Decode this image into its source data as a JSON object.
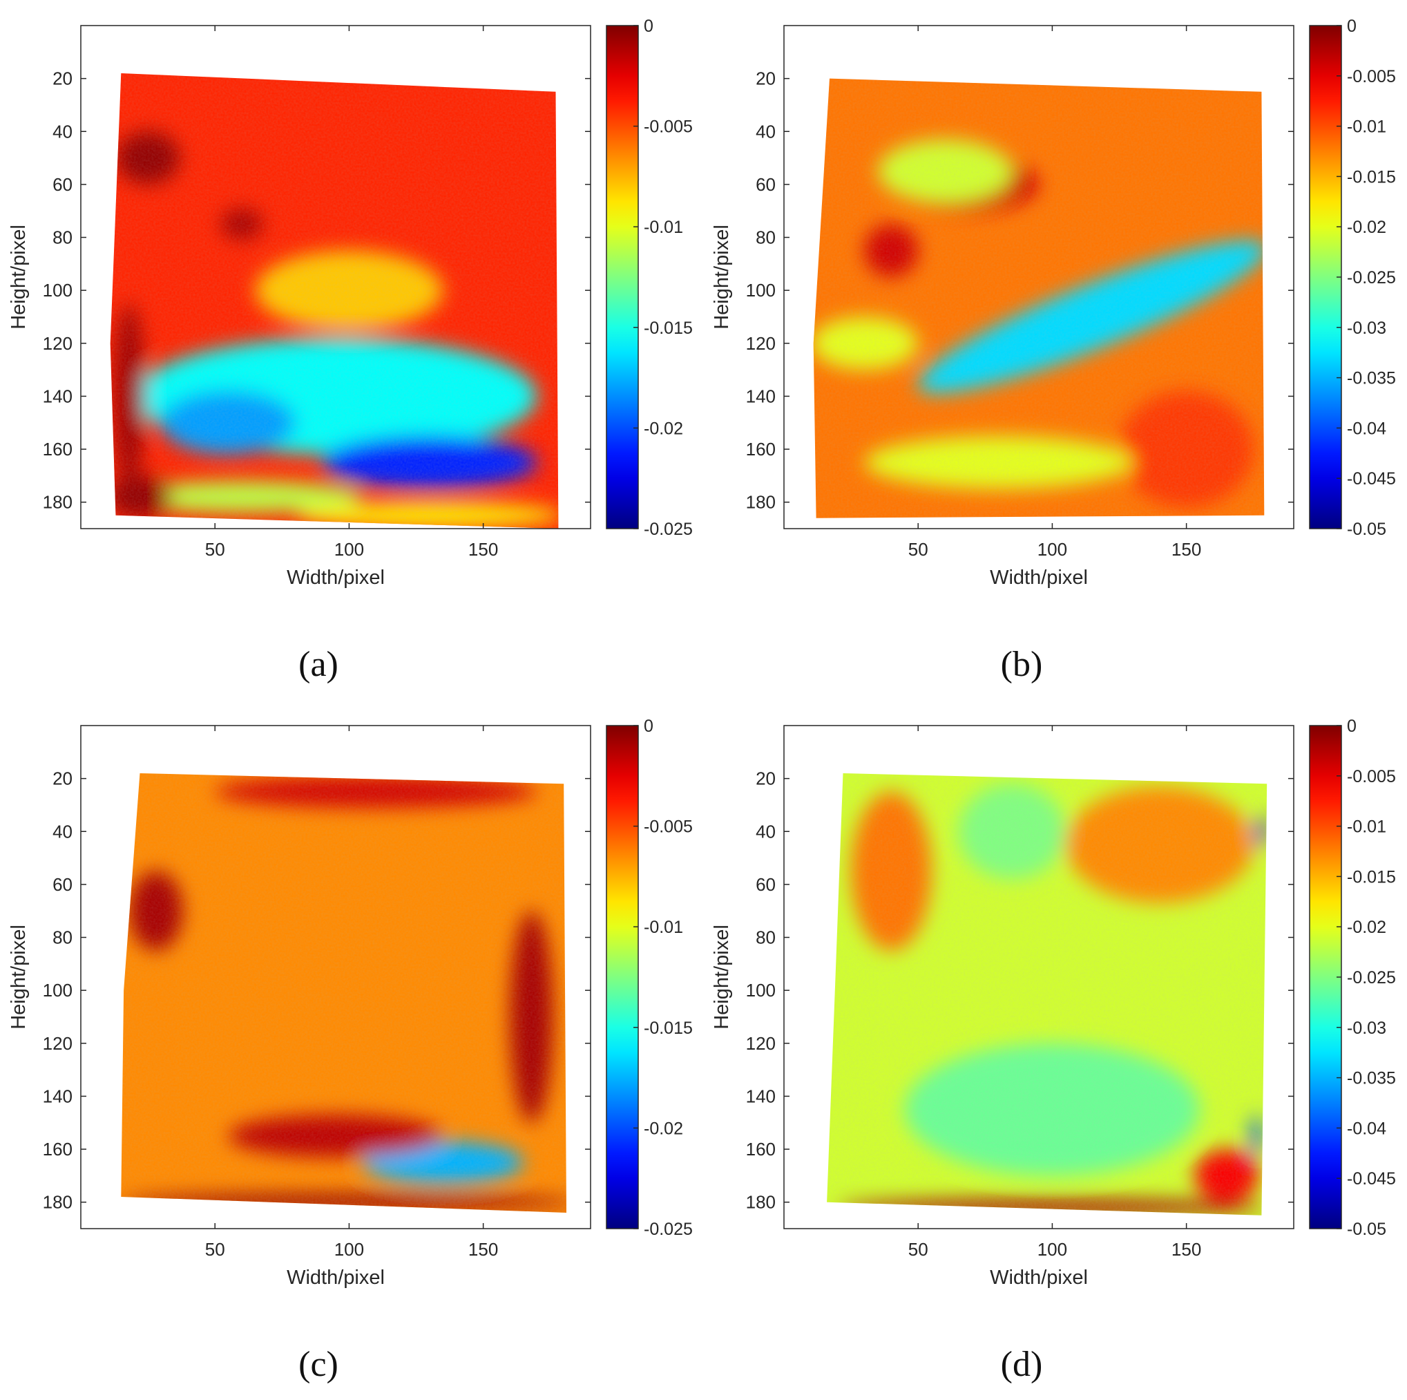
{
  "chart_data": [
    {
      "type": "heatmap",
      "panel_label": "(a)",
      "xlabel": "Width/pixel",
      "ylabel": "Height/pixel",
      "xlim": [
        0,
        190
      ],
      "ylim": [
        190,
        0
      ],
      "xticks": [
        50,
        100,
        150
      ],
      "yticks": [
        20,
        40,
        60,
        80,
        100,
        120,
        140,
        160,
        180
      ],
      "colorbar": {
        "colormap": "jet",
        "min": -0.025,
        "max": 0,
        "ticks": [
          "0",
          "-0.005",
          "-0.01",
          "-0.015",
          "-0.02",
          "-0.025"
        ]
      },
      "field": {
        "base": -0.004,
        "outline": [
          [
            15,
            18
          ],
          [
            177,
            25
          ],
          [
            178,
            190
          ],
          [
            13,
            185
          ],
          [
            11,
            120
          ]
        ],
        "features": [
          {
            "x": 95,
            "y": 140,
            "rx": 75,
            "ry": 22,
            "v": -0.0155
          },
          {
            "x": 130,
            "y": 165,
            "rx": 40,
            "ry": 10,
            "v": -0.021
          },
          {
            "x": 55,
            "y": 150,
            "rx": 25,
            "ry": 12,
            "v": -0.018
          },
          {
            "x": 60,
            "y": 178,
            "rx": 45,
            "ry": 6,
            "v": -0.011
          },
          {
            "x": 130,
            "y": 185,
            "rx": 50,
            "ry": 5,
            "v": -0.009
          },
          {
            "x": 25,
            "y": 50,
            "rx": 12,
            "ry": 10,
            "v": -0.0005
          },
          {
            "x": 18,
            "y": 140,
            "rx": 6,
            "ry": 35,
            "v": -0.0008
          },
          {
            "x": 22,
            "y": 178,
            "rx": 12,
            "ry": 8,
            "v": -0.0005
          },
          {
            "x": 60,
            "y": 75,
            "rx": 8,
            "ry": 6,
            "v": -0.001
          },
          {
            "x": 100,
            "y": 100,
            "rx": 35,
            "ry": 15,
            "v": -0.008
          }
        ]
      }
    },
    {
      "type": "heatmap",
      "panel_label": "(b)",
      "xlabel": "Width/pixel",
      "ylabel": "Height/pixel",
      "xlim": [
        0,
        190
      ],
      "ylim": [
        190,
        0
      ],
      "xticks": [
        50,
        100,
        150
      ],
      "yticks": [
        20,
        40,
        60,
        80,
        100,
        120,
        140,
        160,
        180
      ],
      "colorbar": {
        "colormap": "jet",
        "min": -0.05,
        "max": 0,
        "ticks": [
          "0",
          "-0.005",
          "-0.01",
          "-0.015",
          "-0.02",
          "-0.025",
          "-0.03",
          "-0.035",
          "-0.04",
          "-0.045",
          "-0.05"
        ]
      },
      "field": {
        "base": -0.012,
        "outline": [
          [
            17,
            20
          ],
          [
            178,
            25
          ],
          [
            179,
            185
          ],
          [
            12,
            186
          ],
          [
            11,
            120
          ]
        ],
        "features": [
          {
            "x": 115,
            "y": 110,
            "rx": 70,
            "ry": 12,
            "v": -0.033,
            "angle": -22
          },
          {
            "x": 70,
            "y": 60,
            "rx": 25,
            "ry": 10,
            "v": -0.004
          },
          {
            "x": 40,
            "y": 85,
            "rx": 10,
            "ry": 10,
            "v": -0.004
          },
          {
            "x": 150,
            "y": 160,
            "rx": 25,
            "ry": 22,
            "v": -0.009
          },
          {
            "x": 60,
            "y": 55,
            "rx": 25,
            "ry": 12,
            "v": -0.021
          },
          {
            "x": 80,
            "y": 165,
            "rx": 50,
            "ry": 10,
            "v": -0.02
          },
          {
            "x": 30,
            "y": 120,
            "rx": 20,
            "ry": 10,
            "v": -0.02
          }
        ]
      }
    },
    {
      "type": "heatmap",
      "panel_label": "(c)",
      "xlabel": "Width/pixel",
      "ylabel": "Height/pixel",
      "xlim": [
        0,
        190
      ],
      "ylim": [
        190,
        0
      ],
      "xticks": [
        50,
        100,
        150
      ],
      "yticks": [
        20,
        40,
        60,
        80,
        100,
        120,
        140,
        160,
        180
      ],
      "colorbar": {
        "colormap": "jet",
        "min": -0.025,
        "max": 0,
        "ticks": [
          "0",
          "-0.005",
          "-0.01",
          "-0.015",
          "-0.02",
          "-0.025"
        ]
      },
      "field": {
        "base": -0.0065,
        "outline": [
          [
            22,
            18
          ],
          [
            180,
            22
          ],
          [
            181,
            184
          ],
          [
            15,
            178
          ],
          [
            16,
            100
          ]
        ],
        "features": [
          {
            "x": 135,
            "y": 165,
            "rx": 30,
            "ry": 8,
            "v": -0.0175
          },
          {
            "x": 100,
            "y": 180,
            "rx": 85,
            "ry": 3,
            "v": -0.0005
          },
          {
            "x": 28,
            "y": 70,
            "rx": 10,
            "ry": 15,
            "v": -0.001
          },
          {
            "x": 168,
            "y": 110,
            "rx": 8,
            "ry": 40,
            "v": -0.001
          },
          {
            "x": 95,
            "y": 155,
            "rx": 40,
            "ry": 8,
            "v": -0.0015
          },
          {
            "x": 110,
            "y": 25,
            "rx": 60,
            "ry": 6,
            "v": -0.002
          }
        ]
      }
    },
    {
      "type": "heatmap",
      "panel_label": "(d)",
      "xlabel": "Width/pixel",
      "ylabel": "Height/pixel",
      "xlim": [
        0,
        190
      ],
      "ylim": [
        190,
        0
      ],
      "xticks": [
        50,
        100,
        150
      ],
      "yticks": [
        20,
        40,
        60,
        80,
        100,
        120,
        140,
        160,
        180
      ],
      "colorbar": {
        "colormap": "jet",
        "min": -0.05,
        "max": 0,
        "ticks": [
          "0",
          "-0.005",
          "-0.01",
          "-0.015",
          "-0.02",
          "-0.025",
          "-0.03",
          "-0.035",
          "-0.04",
          "-0.045",
          "-0.05"
        ]
      },
      "field": {
        "base": -0.021,
        "outline": [
          [
            22,
            18
          ],
          [
            180,
            22
          ],
          [
            178,
            185
          ],
          [
            16,
            180
          ],
          [
            19,
            100
          ]
        ],
        "features": [
          {
            "x": 140,
            "y": 45,
            "rx": 35,
            "ry": 22,
            "v": -0.013
          },
          {
            "x": 40,
            "y": 55,
            "rx": 15,
            "ry": 30,
            "v": -0.012
          },
          {
            "x": 100,
            "y": 145,
            "rx": 55,
            "ry": 25,
            "v": -0.026
          },
          {
            "x": 85,
            "y": 40,
            "rx": 20,
            "ry": 18,
            "v": -0.025
          },
          {
            "x": 165,
            "y": 170,
            "rx": 12,
            "ry": 10,
            "v": -0.006
          },
          {
            "x": 100,
            "y": 182,
            "rx": 80,
            "ry": 3,
            "v": -0.002
          },
          {
            "x": 178,
            "y": 40,
            "rx": 2,
            "ry": 6,
            "v": -0.045
          },
          {
            "x": 176,
            "y": 155,
            "rx": 2,
            "ry": 8,
            "v": -0.04
          }
        ]
      }
    }
  ]
}
